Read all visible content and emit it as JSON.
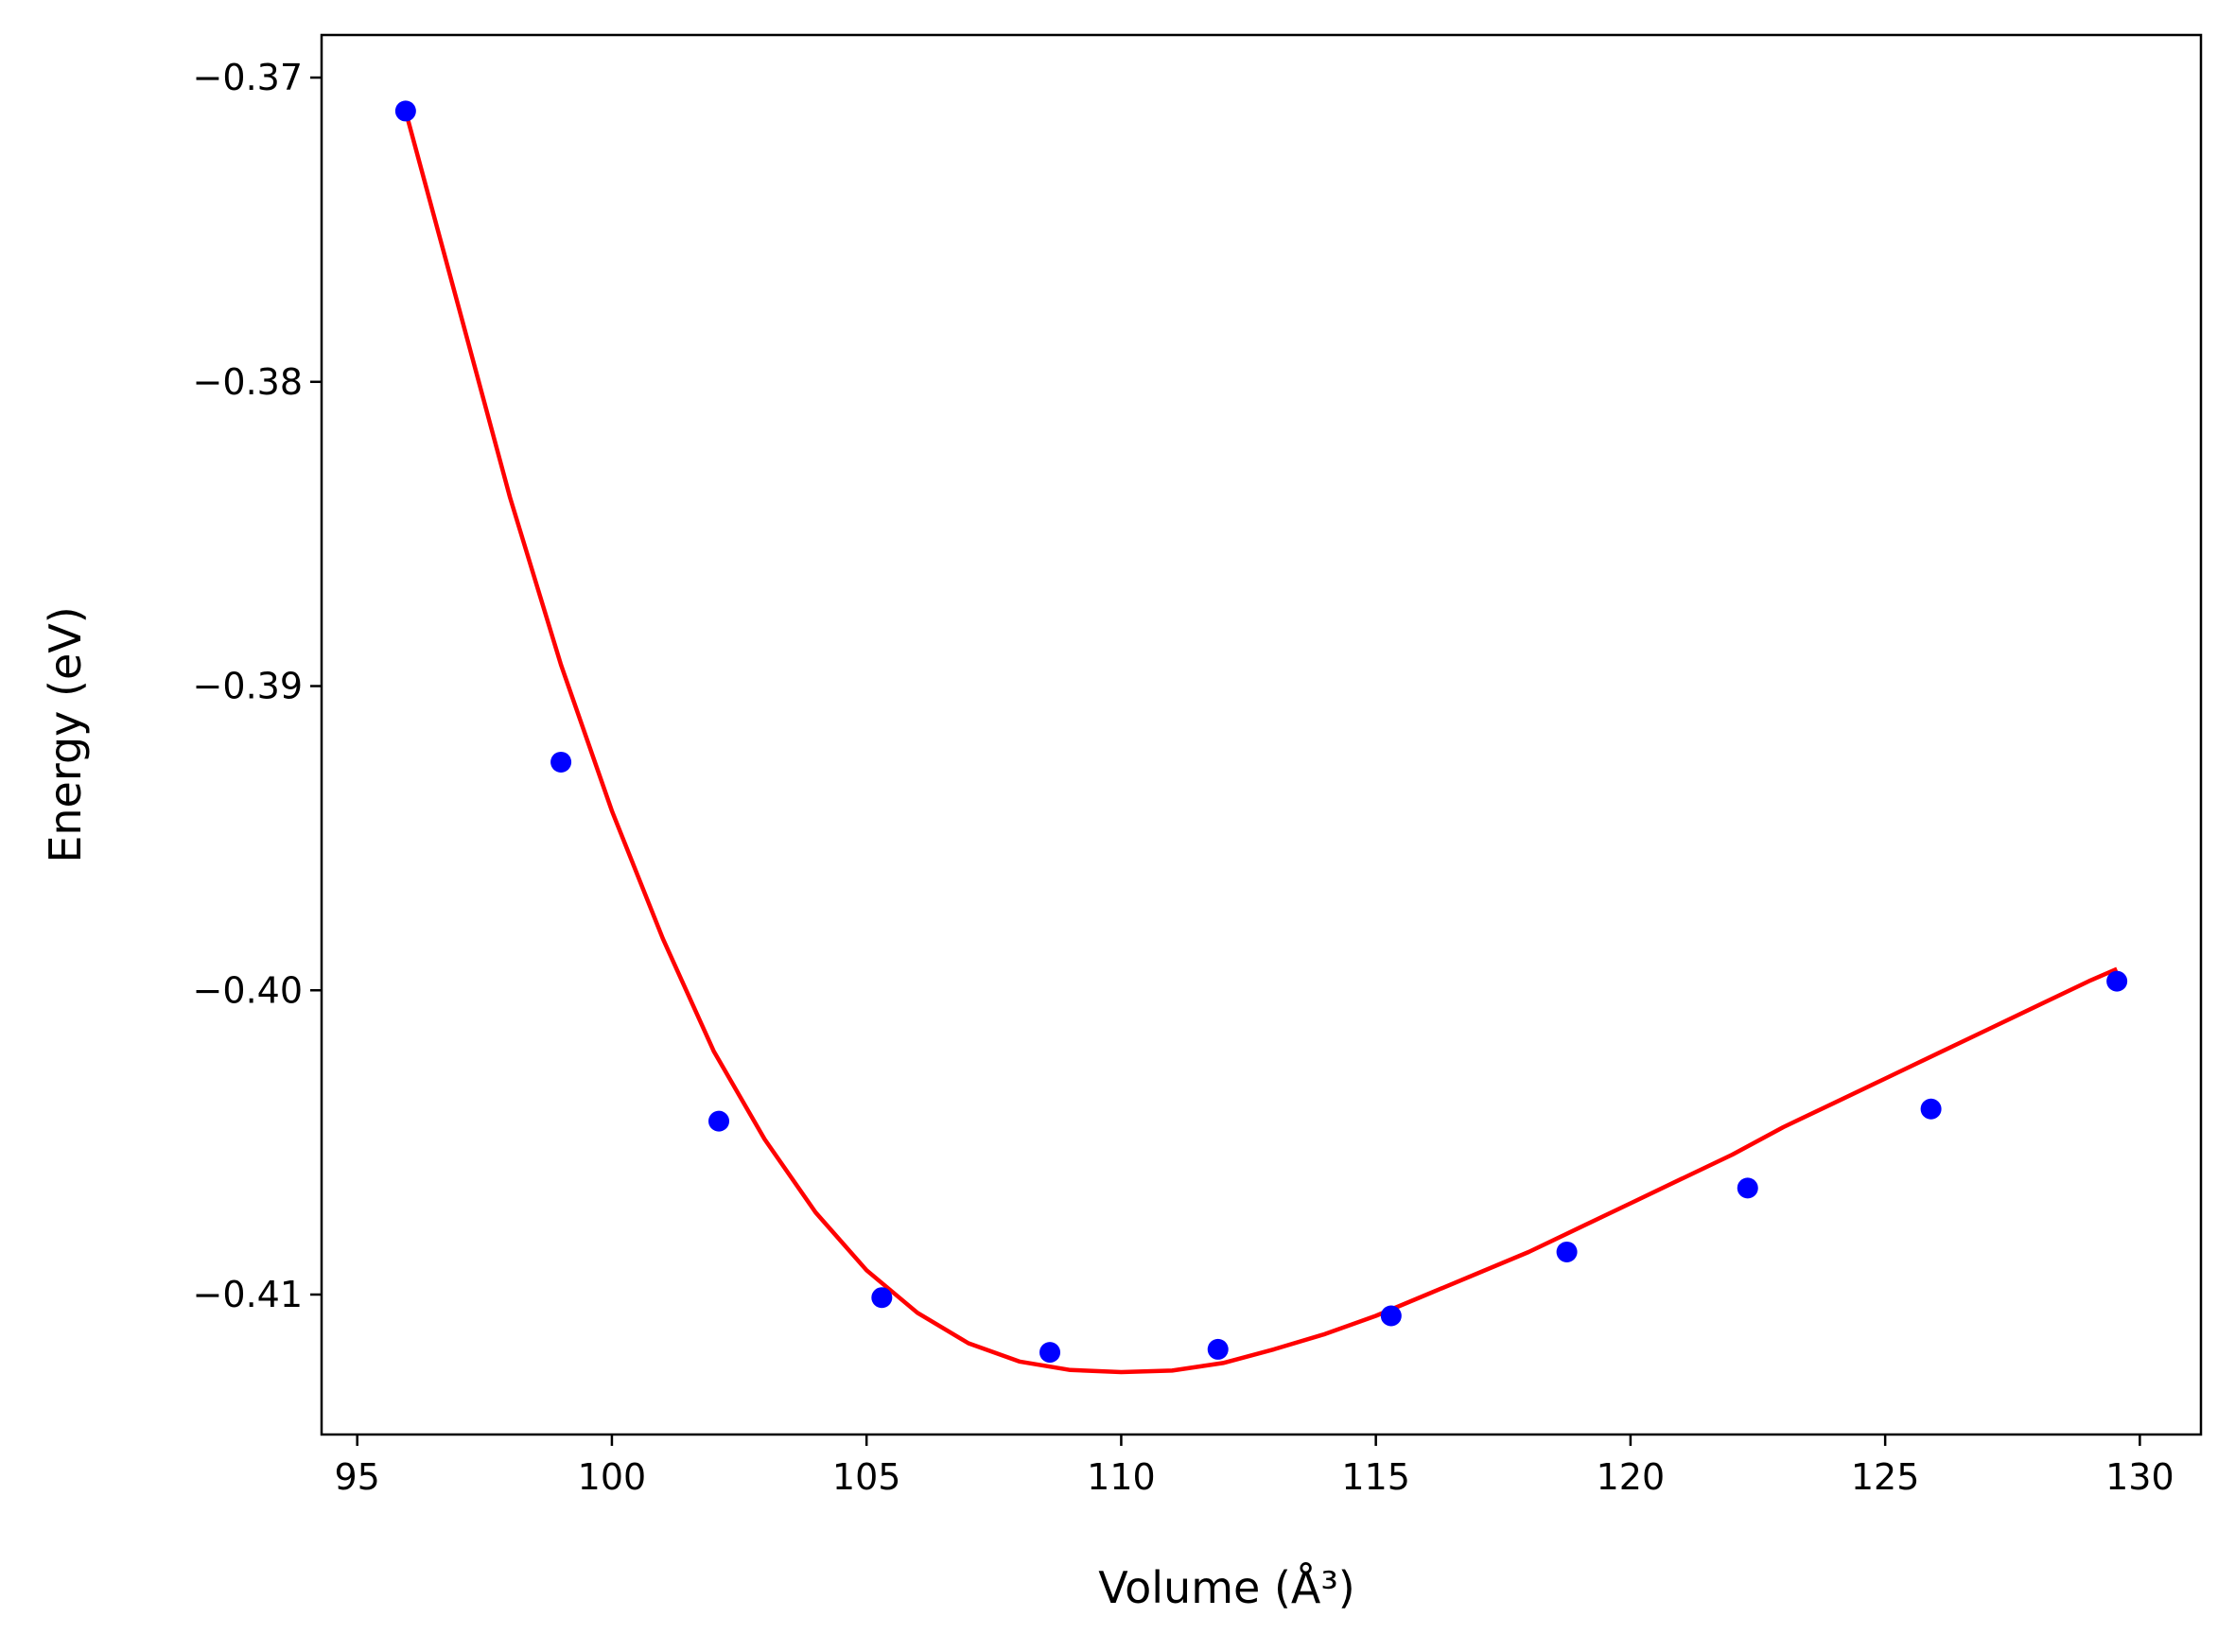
{
  "chart_data": {
    "type": "scatter",
    "title": "",
    "xlabel": "Volume (Å³)",
    "ylabel": "Energy (eV)",
    "xlim": [
      94.3,
      131.2
    ],
    "ylim": [
      -0.4146,
      -0.3686
    ],
    "xticks": [
      95,
      100,
      105,
      110,
      115,
      120,
      125,
      130
    ],
    "xtick_labels": [
      "95",
      "100",
      "105",
      "110",
      "115",
      "120",
      "125",
      "130"
    ],
    "yticks": [
      -0.37,
      -0.38,
      -0.39,
      -0.4,
      -0.41
    ],
    "ytick_labels": [
      "−0.37",
      "−0.38",
      "−0.39",
      "−0.40",
      "−0.41"
    ],
    "grid": false,
    "series": [
      {
        "kind": "points",
        "color": "#0000ff",
        "x": [
          95.95,
          99.0,
          102.1,
          105.3,
          108.6,
          111.9,
          115.3,
          118.75,
          122.3,
          125.9,
          129.55
        ],
        "y": [
          -0.3711,
          -0.3925,
          -0.4043,
          -0.4101,
          -0.4119,
          -0.4118,
          -0.4107,
          -0.4086,
          -0.4065,
          -0.4039,
          -0.3997
        ]
      },
      {
        "kind": "fit-curve",
        "color": "#ff0000",
        "x": [
          95.95,
          97,
          98,
          99,
          100,
          101,
          102,
          103,
          104,
          105,
          106,
          107,
          108,
          109,
          110,
          111,
          112,
          113,
          114,
          115,
          116,
          117,
          118,
          119,
          120,
          121,
          122,
          123,
          124,
          125,
          126,
          127,
          128,
          129,
          129.55
        ],
        "y": [
          -0.3711,
          -0.3776,
          -0.3838,
          -0.3893,
          -0.3941,
          -0.3983,
          -0.402,
          -0.4049,
          -0.4073,
          -0.4092,
          -0.4106,
          -0.4116,
          -0.4122,
          -0.41248,
          -0.41255,
          -0.4125,
          -0.41225,
          -0.4118,
          -0.4113,
          -0.4107,
          -0.41,
          -0.4093,
          -0.4086,
          -0.4078,
          -0.407,
          -0.4062,
          -0.4054,
          -0.4045,
          -0.4037,
          -0.4029,
          -0.4021,
          -0.4013,
          -0.4005,
          -0.3997,
          -0.3993
        ]
      }
    ]
  }
}
